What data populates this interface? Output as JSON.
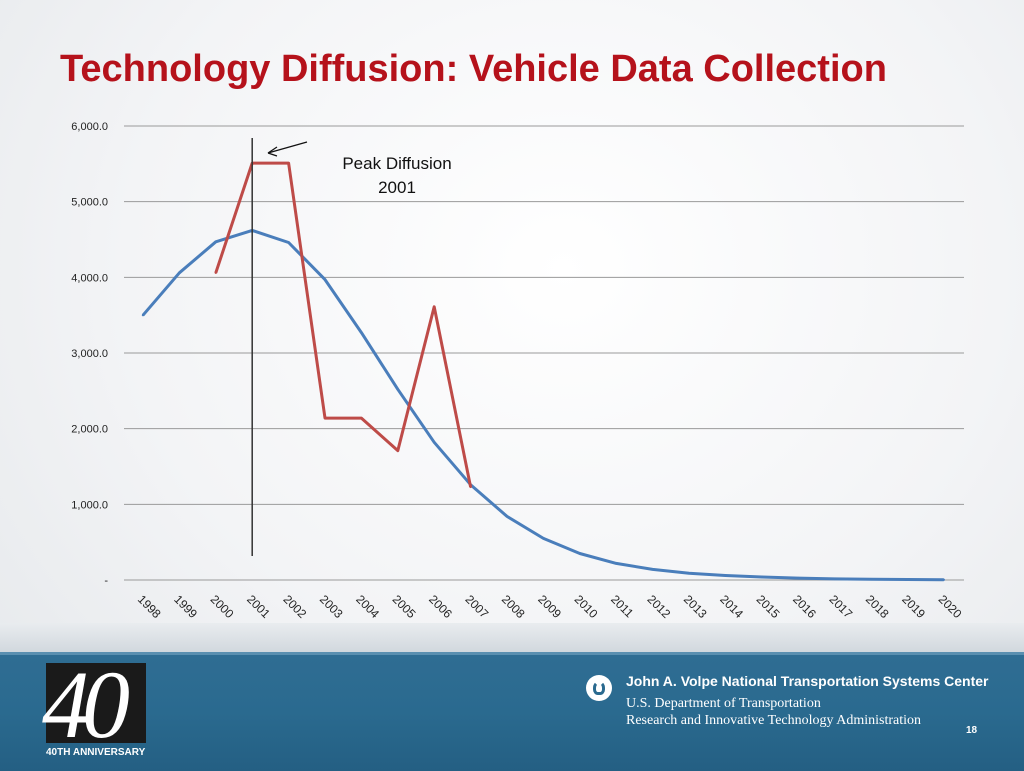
{
  "slide": {
    "title": "Technology Diffusion: Vehicle Data Collection",
    "page_number": "18"
  },
  "footer": {
    "logo_number": "40",
    "logo_caption": "40TH ANNIVERSARY",
    "center_name": "John A. Volpe National Transportation Systems Center",
    "dept_line1": "U.S. Department of Transportation",
    "dept_line2": "Research and Innovative Technology Administration"
  },
  "chart_data": {
    "type": "line",
    "title": "",
    "xlabel": "",
    "ylabel": "",
    "ylim": [
      0,
      6000
    ],
    "yticks": [
      0,
      1000,
      2000,
      3000,
      4000,
      5000,
      6000
    ],
    "ytick_labels": [
      "-",
      "1,000.0",
      "2,000.0",
      "3,000.0",
      "4,000.0",
      "5,000.0",
      "6,000.0"
    ],
    "grid": true,
    "legend": "none",
    "categories": [
      "1998",
      "1999",
      "2000",
      "2001",
      "2002",
      "2003",
      "2004",
      "2005",
      "2006",
      "2007",
      "2008",
      "2009",
      "2010",
      "2011",
      "2012",
      "2013",
      "2014",
      "2015",
      "2016",
      "2017",
      "2018",
      "2019",
      "2020"
    ],
    "series": [
      {
        "color": "#4a7ebb",
        "values": [
          3500,
          4060,
          4470,
          4620,
          4460,
          3970,
          3270,
          2520,
          1820,
          1260,
          840,
          550,
          350,
          220,
          140,
          90,
          60,
          40,
          25,
          15,
          10,
          6,
          3
        ]
      },
      {
        "color": "#be4b48",
        "values": [
          null,
          null,
          4060,
          5510,
          5510,
          2140,
          2140,
          1710,
          3610,
          1230,
          null,
          null,
          null,
          null,
          null,
          null,
          null,
          null,
          null,
          null,
          null,
          null,
          null
        ]
      }
    ],
    "annotations": [
      {
        "text_line1": "Peak Diffusion",
        "text_line2": "2001",
        "vertical_line_at": "2001"
      }
    ]
  }
}
